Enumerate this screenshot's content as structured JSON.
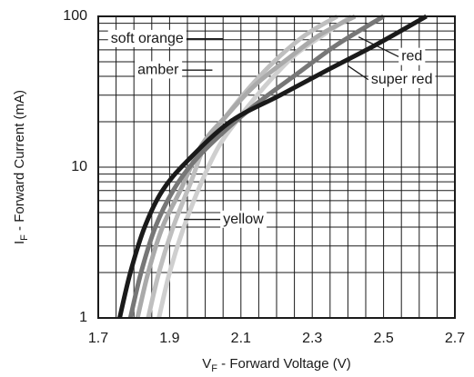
{
  "chart_data": {
    "type": "line",
    "title": "",
    "xlabel": {
      "main": "V",
      "sub": "F",
      "rest": " - Forward Voltage (V)"
    },
    "ylabel": {
      "main": "I",
      "sub": "F",
      "rest": " - Forward Current (mA)"
    },
    "xlim": [
      1.7,
      2.7
    ],
    "ylim": [
      1,
      100
    ],
    "yscale": "log",
    "grid": true,
    "x_ticks": [
      {
        "value": 1.7,
        "label": "1.7"
      },
      {
        "value": 1.9,
        "label": "1.9"
      },
      {
        "value": 2.1,
        "label": "2.1"
      },
      {
        "value": 2.3,
        "label": "2.3"
      },
      {
        "value": 2.5,
        "label": "2.5"
      },
      {
        "value": 2.7,
        "label": "2.7"
      }
    ],
    "y_ticks": [
      {
        "value": 1,
        "label": "1"
      },
      {
        "value": 10,
        "label": "10"
      },
      {
        "value": 100,
        "label": "100"
      }
    ],
    "series": [
      {
        "name": "super red",
        "color": "#1a1a1a",
        "points": [
          [
            1.76,
            1
          ],
          [
            1.79,
            2
          ],
          [
            1.83,
            4
          ],
          [
            1.88,
            7
          ],
          [
            1.95,
            11
          ],
          [
            2.07,
            20
          ],
          [
            2.21,
            30
          ],
          [
            2.35,
            45
          ],
          [
            2.48,
            65
          ],
          [
            2.62,
            100
          ]
        ]
      },
      {
        "name": "red",
        "color": "#777777",
        "points": [
          [
            1.79,
            1
          ],
          [
            1.82,
            2
          ],
          [
            1.86,
            4
          ],
          [
            1.91,
            7
          ],
          [
            1.97,
            11
          ],
          [
            2.05,
            17
          ],
          [
            2.15,
            27
          ],
          [
            2.26,
            42
          ],
          [
            2.37,
            65
          ],
          [
            2.5,
            100
          ]
        ]
      },
      {
        "name": "amber",
        "color": "#aaaaaa",
        "points": [
          [
            1.81,
            1
          ],
          [
            1.84,
            2
          ],
          [
            1.88,
            4
          ],
          [
            1.93,
            7
          ],
          [
            1.99,
            14
          ],
          [
            2.06,
            22
          ],
          [
            2.14,
            35
          ],
          [
            2.23,
            52
          ],
          [
            2.32,
            75
          ],
          [
            2.42,
            100
          ]
        ]
      },
      {
        "name": "soft orange",
        "color": "#bfbfbf",
        "points": [
          [
            1.84,
            1
          ],
          [
            1.87,
            2
          ],
          [
            1.91,
            4
          ],
          [
            1.96,
            8
          ],
          [
            2.0,
            14
          ],
          [
            2.06,
            22
          ],
          [
            2.13,
            35
          ],
          [
            2.2,
            52
          ],
          [
            2.28,
            75
          ],
          [
            2.37,
            100
          ]
        ]
      },
      {
        "name": "yellow",
        "color": "#cfcfcf",
        "points": [
          [
            1.87,
            1
          ],
          [
            1.9,
            2
          ],
          [
            1.94,
            4
          ],
          [
            1.99,
            8
          ],
          [
            2.04,
            14
          ],
          [
            2.1,
            22
          ],
          [
            2.17,
            35
          ],
          [
            2.25,
            55
          ],
          [
            2.33,
            75
          ],
          [
            2.41,
            100
          ]
        ]
      }
    ],
    "annotations": [
      {
        "text": "soft orange",
        "series": "soft orange",
        "text_x": 1.735,
        "text_y": 71,
        "line_to": [
          2.05,
          71
        ]
      },
      {
        "text": "amber",
        "series": "amber",
        "text_x": 1.81,
        "text_y": 44,
        "line_to": [
          2.02,
          44
        ]
      },
      {
        "text": "red",
        "series": "red",
        "text_x": 2.55,
        "text_y": 54,
        "line_to": [
          2.43,
          73
        ]
      },
      {
        "text": "super red",
        "series": "super red",
        "text_x": 2.465,
        "text_y": 38,
        "line_to": [
          2.4,
          47
        ]
      },
      {
        "text": "yellow",
        "series": "yellow",
        "text_x": 2.05,
        "text_y": 4.5,
        "line_to": [
          1.94,
          4.5
        ]
      }
    ]
  }
}
